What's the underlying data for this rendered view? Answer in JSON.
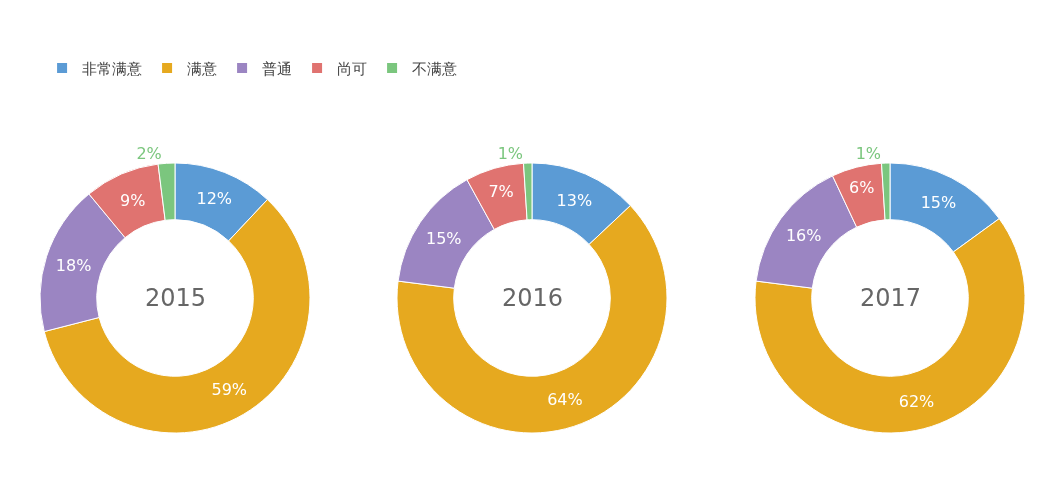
{
  "chart_data": [
    {
      "type": "donut",
      "title": "2015",
      "categories": [
        "非常满意",
        "满意",
        "普通",
        "尚可",
        "不满意"
      ],
      "values": [
        12,
        59,
        18,
        9,
        2
      ],
      "value_labels": [
        "12%",
        "59%",
        "18%",
        "9%",
        "2%"
      ],
      "colors": [
        "#5b9bd5",
        "#e6a91f",
        "#9b85c2",
        "#e07370",
        "#7bc67e"
      ],
      "legend": "top right"
    },
    {
      "type": "donut",
      "title": "2016",
      "categories": [
        null,
        null,
        null,
        null,
        null
      ],
      "values": [
        13,
        64,
        15,
        7,
        1
      ],
      "value_labels": [
        "13%",
        "64%",
        "15%",
        "7%",
        "1%"
      ],
      "colors": [
        "#5b9bd5",
        "#e6a91f",
        "#9b85c2",
        "#e07370",
        "#7bc67e"
      ]
    },
    {
      "type": "donut",
      "title": "2017",
      "categories": [
        null,
        null,
        null,
        null,
        null
      ],
      "values": [
        15,
        62,
        16,
        6,
        1
      ],
      "value_labels": [
        "15%",
        "62%",
        "16%",
        "6%",
        "1%"
      ],
      "colors": [
        "#5b9bd5",
        "#e6a91f",
        "#9b85c2",
        "#e07370",
        "#7bc67e"
      ]
    }
  ]
}
